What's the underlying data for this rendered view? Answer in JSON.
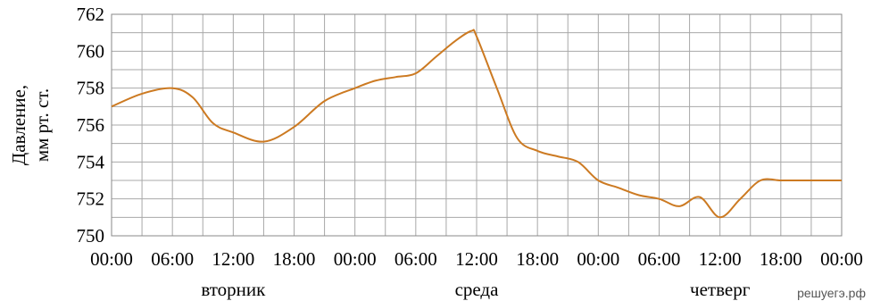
{
  "chart_data": {
    "type": "line",
    "ylabel_lines": [
      "Давление,",
      "мм рт. ст."
    ],
    "ylim": [
      750,
      762
    ],
    "yticks": [
      750,
      752,
      754,
      756,
      758,
      760,
      762
    ],
    "xlim": [
      0,
      72
    ],
    "xtick_labels": [
      "00:00",
      "06:00",
      "12:00",
      "18:00",
      "00:00",
      "06:00",
      "12:00",
      "18:00",
      "00:00",
      "06:00",
      "12:00",
      "18:00",
      "00:00"
    ],
    "day_labels": [
      {
        "label": "вторник",
        "center_hour": 12
      },
      {
        "label": "среда",
        "center_hour": 36
      },
      {
        "label": "четверг",
        "center_hour": 60
      }
    ],
    "grid": true,
    "line_color": "#cc7a22",
    "series": [
      {
        "x": [
          0,
          3,
          6,
          8,
          10,
          12,
          15,
          18,
          21,
          24,
          26,
          28,
          30,
          32,
          34,
          35.5,
          36,
          38,
          40,
          42,
          44,
          46,
          48,
          50,
          52,
          54,
          56,
          58,
          60,
          62,
          64,
          66,
          68,
          70,
          72
        ],
        "y": [
          757.0,
          757.7,
          758.0,
          757.5,
          756.1,
          755.6,
          755.1,
          755.9,
          757.3,
          758.0,
          758.4,
          758.6,
          758.8,
          759.7,
          760.6,
          761.1,
          760.8,
          758.0,
          755.3,
          754.6,
          754.3,
          754.0,
          753.0,
          752.6,
          752.2,
          752.0,
          751.6,
          752.1,
          751.0,
          752.0,
          753.0,
          753.0,
          753.0,
          753.0,
          753.0
        ]
      }
    ]
  },
  "watermark": "решуегэ.рф"
}
